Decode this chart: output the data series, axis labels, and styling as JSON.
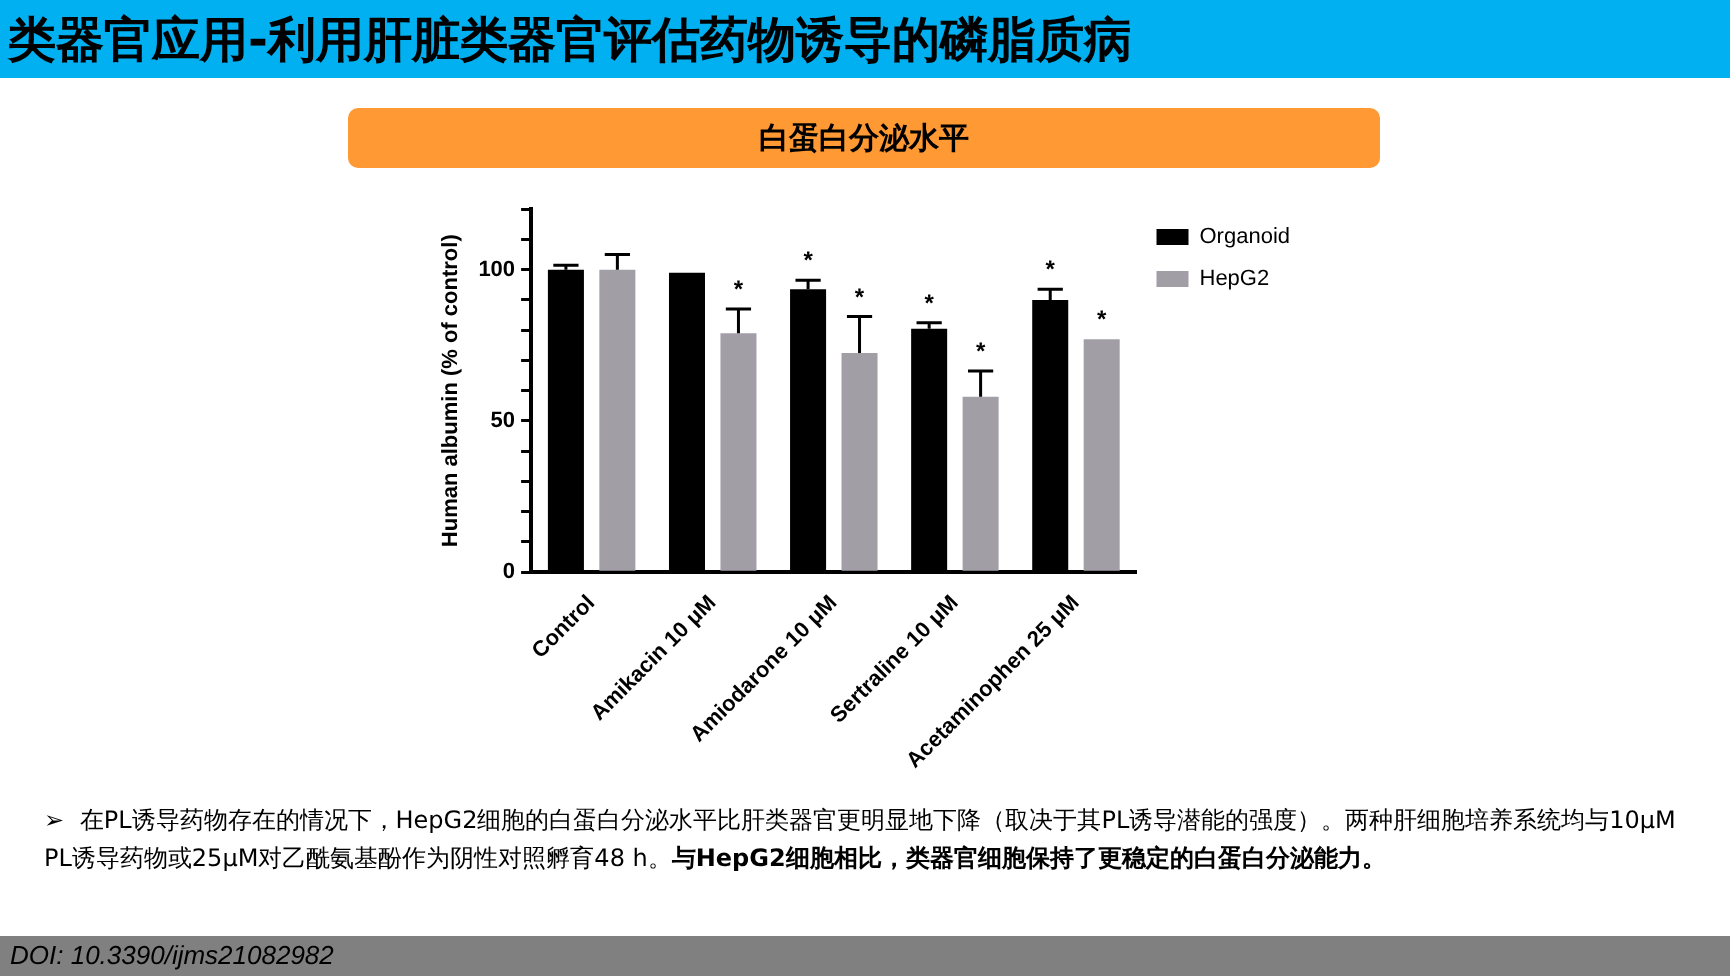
{
  "chart_data": {
    "type": "bar",
    "title": "白蛋白分泌水平",
    "ylabel": "Human albumin (% of control)",
    "categories": [
      "Control",
      "Amikacin 10 μM",
      "Amiodarone 10 μM",
      "Sertraline 10 μM",
      "Acetaminophen 25 μM"
    ],
    "series": [
      {
        "name": "Organoid",
        "color": "#000000",
        "values": [
          100,
          99,
          93.5,
          80.5,
          90
        ],
        "errors": [
          [
            100,
            101.5
          ],
          null,
          [
            93.5,
            96.5
          ],
          [
            80.5,
            82.5
          ],
          [
            90,
            93.5
          ]
        ],
        "value_labels": [
          null,
          null,
          "*",
          "*",
          "*"
        ]
      },
      {
        "name": "HepG2",
        "color": "#a29ea6",
        "values": [
          100,
          79,
          72.5,
          58,
          77
        ],
        "errors": [
          [
            100,
            105
          ],
          [
            79,
            87
          ],
          [
            72.5,
            84.5
          ],
          [
            58,
            66.5
          ],
          null
        ],
        "value_labels": [
          null,
          "*",
          "*",
          "*",
          "*"
        ]
      }
    ],
    "ylim": [
      0,
      120
    ],
    "yticks": [
      0,
      {
        "value": 10,
        "label": null
      },
      {
        "value": 20,
        "label": null
      },
      {
        "value": 30,
        "label": null
      },
      {
        "value": 40,
        "label": null
      },
      50,
      {
        "value": 60,
        "label": null
      },
      {
        "value": 70,
        "label": null
      },
      {
        "value": 80,
        "label": null
      },
      {
        "value": 90,
        "label": null
      },
      100,
      {
        "value": 110,
        "label": null
      },
      {
        "value": 120,
        "label": null
      }
    ],
    "grid": false,
    "legend": "top right",
    "annotations": [
      "类器官应用-利用肝脏类器官评估药物诱导的磷脂质病",
      "➢",
      "在PL诱导药物存在的情况下，HepG2细胞的白蛋白分泌水平比肝类器官更明显地下降（取决于其PL诱导潜能的强度）。两种肝细胞培养系统均与10μM PL诱导药物或25μM对乙酰氨基酚作为阴性对照孵育48 h。",
      "与HepG2细胞相比，类器官细胞保持了更稳定的白蛋白分泌能力。",
      "DOI: 10.3390/ijms21082982"
    ]
  }
}
